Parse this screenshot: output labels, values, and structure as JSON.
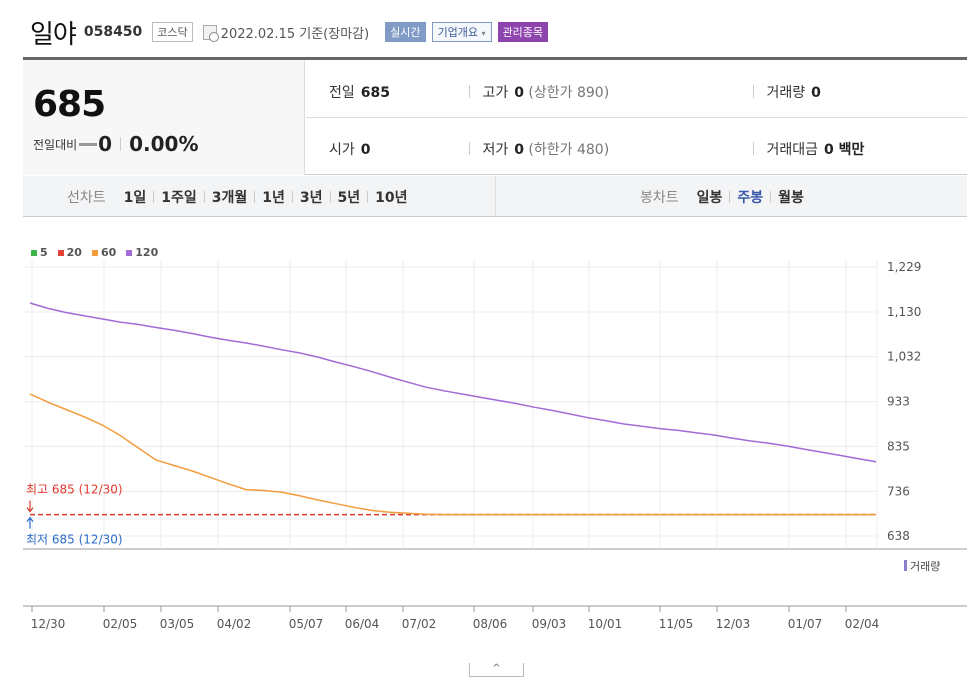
{
  "header": {
    "name": "일야",
    "code": "058450",
    "market": "코스닥",
    "date": "2022.02.15 기준(장마감)",
    "realtime_btn": "실시간",
    "company_btn": "기업개요",
    "company_arrow": "▾",
    "favorite_btn": "관리종목"
  },
  "quote": {
    "price": "685",
    "change_label": "전일대비",
    "change_value": "0",
    "change_pct": "0.00%",
    "prev_label": "전일",
    "prev_value": "685",
    "high_label": "고가",
    "high_value": "0",
    "upper_limit": "(상한가 890)",
    "volume_label": "거래량",
    "volume_value": "0",
    "open_label": "시가",
    "open_value": "0",
    "low_label": "저가",
    "low_value": "0",
    "lower_limit": "(하한가 480)",
    "amount_label": "거래대금",
    "amount_value": "0 백만"
  },
  "tabs": {
    "line_label": "선차트",
    "line_items": [
      "1일",
      "1주일",
      "3개월",
      "1년",
      "3년",
      "5년",
      "10년"
    ],
    "candle_label": "봉차트",
    "candle_items": [
      "일봉",
      "주봉",
      "월봉"
    ],
    "candle_active": 1
  },
  "chart_data": {
    "type": "line",
    "legend": [
      {
        "name": "5",
        "color": "#3cb44b"
      },
      {
        "name": "20",
        "color": "#e6403a"
      },
      {
        "name": "60",
        "color": "#f39c3c"
      },
      {
        "name": "120",
        "color": "#a36bd6"
      }
    ],
    "x_labels": [
      "12/30",
      "02/05",
      "03/05",
      "04/02",
      "05/07",
      "06/04",
      "07/02",
      "08/06",
      "09/03",
      "10/01",
      "11/05",
      "12/03",
      "01/07",
      "02/04"
    ],
    "yticks": [
      "1,229",
      "1,130",
      "1,032",
      "933",
      "835",
      "736",
      "638"
    ],
    "ylim": [
      638,
      1229
    ],
    "n_points": 48,
    "series": [
      {
        "name": "5",
        "color": "#3cb44b",
        "style": "dashed",
        "values": [
          685,
          685,
          685,
          685,
          685,
          685,
          685,
          685,
          685,
          685,
          685,
          685,
          685,
          685,
          685,
          685,
          685,
          685,
          685,
          685,
          685,
          685,
          685,
          685,
          685,
          685,
          685,
          685,
          685,
          685,
          685,
          685,
          685,
          685,
          685,
          685,
          685,
          685,
          685,
          685,
          685,
          685,
          685,
          685,
          685,
          685,
          685,
          685
        ]
      },
      {
        "name": "20",
        "color": "#e6403a",
        "style": "dashed",
        "values": [
          685,
          685,
          685,
          685,
          685,
          685,
          685,
          685,
          685,
          685,
          685,
          685,
          685,
          685,
          685,
          685,
          685,
          685,
          685,
          685,
          685,
          685,
          685,
          685,
          685,
          685,
          685,
          685,
          685,
          685,
          685,
          685,
          685,
          685,
          685,
          685,
          685,
          685,
          685,
          685,
          685,
          685,
          685,
          685,
          685,
          685,
          685,
          685
        ]
      },
      {
        "name": "60",
        "color": "#f39c3c",
        "style": "solid",
        "values": [
          950,
          932,
          916,
          900,
          882,
          859,
          832,
          805,
          793,
          781,
          767,
          753,
          740,
          738,
          734,
          726,
          717,
          709,
          701,
          694,
          690,
          688,
          686,
          685,
          685,
          685,
          685,
          685,
          685,
          685,
          685,
          685,
          685,
          685,
          685,
          685,
          685,
          685,
          685,
          685,
          685,
          685,
          685,
          685,
          685,
          685,
          685,
          685
        ]
      },
      {
        "name": "120",
        "color": "#a36bd6",
        "style": "solid",
        "values": [
          1150,
          1138,
          1129,
          1122,
          1115,
          1108,
          1103,
          1096,
          1090,
          1083,
          1075,
          1068,
          1062,
          1055,
          1047,
          1040,
          1031,
          1020,
          1010,
          999,
          987,
          976,
          965,
          957,
          950,
          943,
          936,
          929,
          921,
          914,
          906,
          898,
          891,
          884,
          879,
          874,
          870,
          865,
          860,
          853,
          847,
          842,
          836,
          829,
          822,
          815,
          808,
          801
        ]
      }
    ],
    "annotation_high": "최고 685 (12/30)",
    "annotation_low": "최저 685 (12/30)",
    "volume_label": "거래량"
  },
  "collapse_icon": "^"
}
